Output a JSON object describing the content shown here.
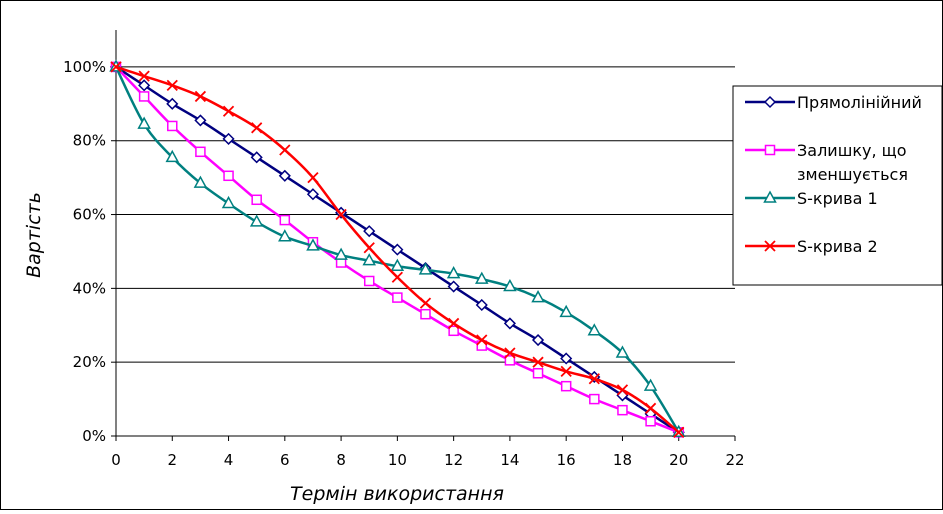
{
  "chart_data": {
    "type": "line",
    "xlabel": "Термін використання",
    "ylabel": "Вартість",
    "xlim": [
      0,
      22
    ],
    "ylim": [
      0,
      1.1
    ],
    "x_ticks": [
      "0",
      "2",
      "4",
      "6",
      "8",
      "10",
      "12",
      "14",
      "16",
      "18",
      "20",
      "22"
    ],
    "x_tick_values": [
      0,
      2,
      4,
      6,
      8,
      10,
      12,
      14,
      16,
      18,
      20,
      22
    ],
    "y_ticks": [
      "0%",
      "20%",
      "40%",
      "60%",
      "80%",
      "100%"
    ],
    "y_tick_values": [
      0,
      0.2,
      0.4,
      0.6,
      0.8,
      1.0
    ],
    "grid": "horizontal",
    "legend_position": "right",
    "x": [
      0,
      1,
      2,
      3,
      4,
      5,
      6,
      7,
      8,
      9,
      10,
      11,
      12,
      13,
      14,
      15,
      16,
      17,
      18,
      19,
      20
    ],
    "series": [
      {
        "name": "Прямолінійний",
        "legend_lines": [
          "Прямолінійний"
        ],
        "color": "#000080",
        "marker": "diamond",
        "values": [
          1.0,
          0.95,
          0.9,
          0.855,
          0.805,
          0.755,
          0.705,
          0.655,
          0.605,
          0.555,
          0.505,
          0.455,
          0.405,
          0.355,
          0.305,
          0.26,
          0.21,
          0.16,
          0.11,
          0.06,
          0.01
        ]
      },
      {
        "name": "Залишку, що зменшується",
        "legend_lines": [
          "Залишку, що",
          "зменшується"
        ],
        "color": "#ff00ff",
        "marker": "square",
        "values": [
          1.0,
          0.92,
          0.84,
          0.77,
          0.705,
          0.64,
          0.585,
          0.525,
          0.47,
          0.42,
          0.375,
          0.33,
          0.285,
          0.245,
          0.205,
          0.17,
          0.135,
          0.1,
          0.07,
          0.04,
          0.01
        ]
      },
      {
        "name": "S-крива 1",
        "legend_lines": [
          "S-крива 1"
        ],
        "color": "#008080",
        "marker": "triangle",
        "values": [
          1.0,
          0.845,
          0.755,
          0.685,
          0.63,
          0.58,
          0.54,
          0.515,
          0.49,
          0.475,
          0.46,
          0.45,
          0.44,
          0.425,
          0.405,
          0.375,
          0.335,
          0.285,
          0.225,
          0.135,
          0.01
        ]
      },
      {
        "name": "S-крива 2",
        "legend_lines": [
          "S-крива 2"
        ],
        "color": "#ff0000",
        "marker": "x",
        "values": [
          1.0,
          0.975,
          0.95,
          0.92,
          0.88,
          0.835,
          0.775,
          0.7,
          0.6,
          0.51,
          0.43,
          0.36,
          0.305,
          0.26,
          0.225,
          0.2,
          0.175,
          0.155,
          0.125,
          0.075,
          0.01
        ]
      }
    ]
  }
}
